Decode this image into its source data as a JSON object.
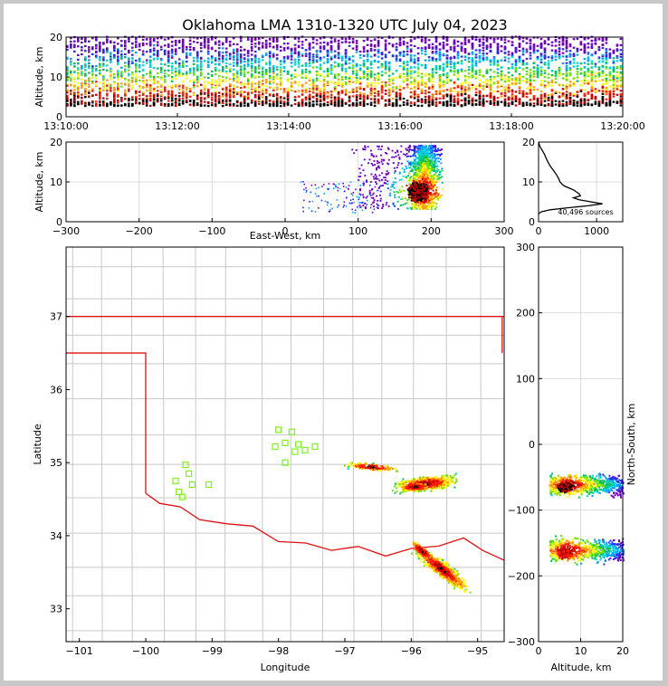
{
  "title": "Oklahoma LMA 1310-1320 UTC July 04, 2023",
  "colors": {
    "border": "#e01010",
    "county": "#c8c8c8",
    "station": "#80f020",
    "profile": "#000000",
    "density": [
      "#6a00c0",
      "#2a2af0",
      "#00a0ff",
      "#00d8d8",
      "#00c060",
      "#70e000",
      "#ffff00",
      "#ffa000",
      "#ff2000",
      "#c00000",
      "#000000"
    ]
  },
  "chart_data": [
    {
      "id": "time-height",
      "type": "heatmap",
      "ylabel": "Altitude, km",
      "x_ticks": [
        "13:10:00",
        "13:12:00",
        "13:14:00",
        "13:16:00",
        "13:18:00",
        "13:20:00"
      ],
      "x_range": [
        "13:10:00",
        "13:20:00"
      ],
      "y_ticks": [
        "0",
        "10",
        "20"
      ],
      "ylim": [
        0,
        20
      ],
      "grid": true
    },
    {
      "id": "ew-altitude",
      "type": "heatmap",
      "xlabel": "East-West, km",
      "ylabel": "Altitude, km",
      "x_ticks": [
        "−300",
        "−200",
        "−100",
        "0",
        "100",
        "200",
        "300"
      ],
      "xlim": [
        -300,
        300
      ],
      "y_ticks": [
        "0",
        "10",
        "20"
      ],
      "ylim": [
        0,
        20
      ],
      "grid": true
    },
    {
      "id": "altitude-histogram",
      "type": "line",
      "annotation": "40,496 sources",
      "x_ticks": [
        "0",
        "1000"
      ],
      "xlim": [
        0,
        1450
      ],
      "y_ticks": [
        "0",
        "10",
        "20"
      ],
      "ylim": [
        0,
        20
      ],
      "profile": [
        [
          0,
          20
        ],
        [
          20,
          19
        ],
        [
          60,
          18
        ],
        [
          100,
          17
        ],
        [
          130,
          16
        ],
        [
          160,
          15
        ],
        [
          200,
          14
        ],
        [
          250,
          13
        ],
        [
          300,
          12
        ],
        [
          340,
          11
        ],
        [
          370,
          10
        ],
        [
          400,
          9.5
        ],
        [
          440,
          9
        ],
        [
          520,
          8.5
        ],
        [
          600,
          8
        ],
        [
          650,
          7.5
        ],
        [
          700,
          7
        ],
        [
          720,
          6.5
        ],
        [
          600,
          6
        ],
        [
          700,
          5.5
        ],
        [
          900,
          5
        ],
        [
          1100,
          4.5
        ],
        [
          850,
          4
        ],
        [
          500,
          3.5
        ],
        [
          200,
          3
        ],
        [
          50,
          2.5
        ],
        [
          0,
          2
        ]
      ]
    },
    {
      "id": "plan-view",
      "type": "heatmap",
      "xlabel": "Longitude",
      "ylabel": "Latitude",
      "x_ticks": [
        "−101",
        "−100",
        "−99",
        "−98",
        "−97",
        "−96",
        "−95"
      ],
      "xlim": [
        -101.2,
        -94.6
      ],
      "y_ticks": [
        "33",
        "34",
        "35",
        "36",
        "37"
      ],
      "ylim": [
        32.55,
        37.95
      ],
      "stations": [
        [
          -98.0,
          35.45
        ],
        [
          -97.8,
          35.42
        ],
        [
          -98.05,
          35.22
        ],
        [
          -97.9,
          35.27
        ],
        [
          -97.7,
          35.25
        ],
        [
          -97.75,
          35.15
        ],
        [
          -97.6,
          35.17
        ],
        [
          -97.45,
          35.22
        ],
        [
          -97.9,
          35.0
        ],
        [
          -99.4,
          34.97
        ],
        [
          -99.35,
          34.85
        ],
        [
          -99.55,
          34.75
        ],
        [
          -99.3,
          34.7
        ],
        [
          -99.05,
          34.7
        ],
        [
          -99.5,
          34.6
        ],
        [
          -99.45,
          34.53
        ]
      ]
    },
    {
      "id": "ns-altitude",
      "type": "heatmap",
      "xlabel": "Altitude, km",
      "ylabel": "North-South, km",
      "x_ticks": [
        "0",
        "10",
        "20"
      ],
      "xlim": [
        0,
        20
      ],
      "y_ticks": [
        "300",
        "200",
        "100",
        "0",
        "−100",
        "−200",
        "−300"
      ],
      "ylim": [
        -300,
        300
      ],
      "grid": true
    }
  ]
}
